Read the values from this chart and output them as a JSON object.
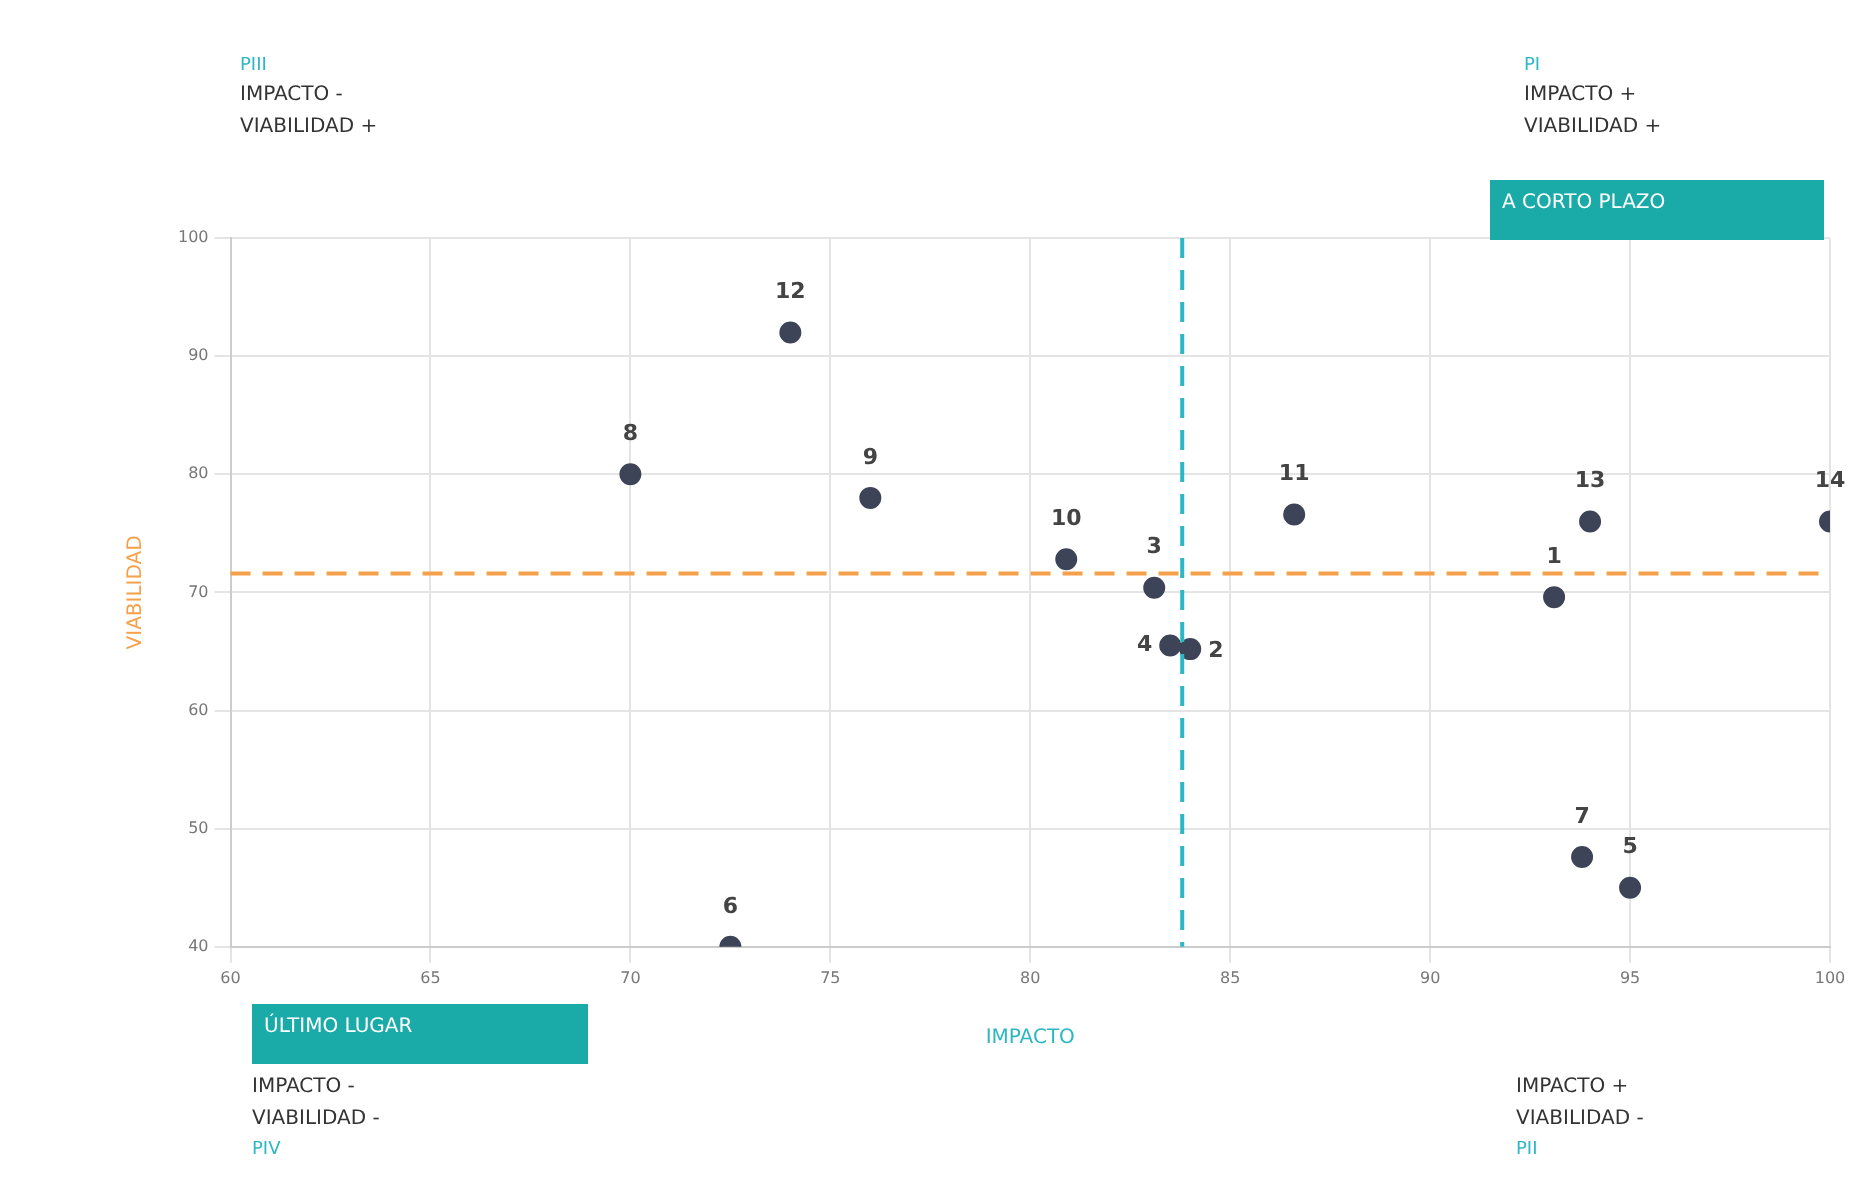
{
  "chart_data": {
    "type": "scatter",
    "xlabel": "IMPACTO",
    "ylabel": "VIABILIDAD",
    "x": [
      93.1,
      84.0,
      83.1,
      83.5,
      95,
      72.5,
      93.8,
      70,
      76,
      80.9,
      86.6,
      74,
      94,
      100
    ],
    "series": [
      {
        "color": "#3d4458",
        "values": [
          69.6,
          65.2,
          70.4,
          65.5,
          45,
          40,
          47.6,
          80,
          78,
          72.8,
          76.6,
          92,
          76,
          76
        ]
      }
    ],
    "xlim": [
      60,
      100
    ],
    "xticks": [
      60,
      65,
      70,
      75,
      80,
      85,
      90,
      95,
      100
    ],
    "ylim": [
      40,
      100
    ],
    "yticks": [
      40,
      50,
      60,
      70,
      80,
      90,
      100
    ],
    "grid": true,
    "marker": "circle",
    "ref_lines": [
      {
        "axis": "y",
        "value": 71.6,
        "color": "#f5a04a",
        "line_style": "dashed"
      },
      {
        "axis": "x",
        "value": 83.8,
        "color": "#2bb7c4",
        "line_style": "dashed"
      }
    ],
    "annotations": [
      "PIII",
      "IMPACTO -",
      "VIABILIDAD +",
      "PI",
      "IMPACTO +",
      "VIABILIDAD +",
      "A CORTO PLAZO",
      "ÚLTIMO LUGAR",
      "IMPACTO -",
      "VIABILIDAD -",
      "PIV",
      "IMPACTO +",
      "VIABILIDAD -",
      "PII",
      {
        "text": "1",
        "x": 93.1,
        "y": 69.6
      },
      {
        "text": "2",
        "x": 84.0,
        "y": 65.2
      },
      {
        "text": "3",
        "x": 83.1,
        "y": 70.4
      },
      {
        "text": "4",
        "x": 83.5,
        "y": 65.5
      },
      {
        "text": "5",
        "x": 95,
        "y": 45
      },
      {
        "text": "6",
        "x": 72.5,
        "y": 40
      },
      {
        "text": "7",
        "x": 93.8,
        "y": 47.6
      },
      {
        "text": "8",
        "x": 70,
        "y": 80
      },
      {
        "text": "9",
        "x": 76,
        "y": 78
      },
      {
        "text": "10",
        "x": 80.9,
        "y": 72.8
      },
      {
        "text": "11",
        "x": 86.6,
        "y": 76.6
      },
      {
        "text": "12",
        "x": 74,
        "y": 92
      },
      {
        "text": "13",
        "x": 94,
        "y": 76
      },
      {
        "text": "14",
        "x": 100,
        "y": 76
      }
    ]
  }
}
